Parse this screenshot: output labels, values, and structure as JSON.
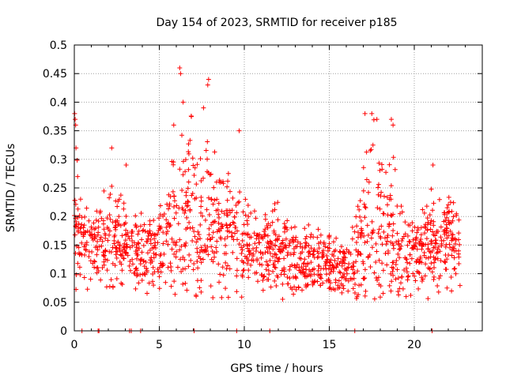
{
  "chart_data": {
    "type": "scatter",
    "title": "Day 154 of 2023, SRMTID for receiver p185",
    "xlabel": "GPS time / hours",
    "ylabel": "SRMTID / TECUs",
    "xlim": [
      0,
      24
    ],
    "ylim": [
      0,
      0.5
    ],
    "x_ticks": [
      0,
      5,
      10,
      15,
      20
    ],
    "x_tick_labels": [
      "0",
      "5",
      "10",
      "15",
      "20"
    ],
    "y_ticks": [
      0,
      0.05,
      0.1,
      0.15,
      0.2,
      0.25,
      0.3,
      0.35,
      0.4,
      0.45,
      0.5
    ],
    "y_tick_labels": [
      "0",
      "0.05",
      "0.1",
      "0.15",
      "0.2",
      "0.25",
      "0.3",
      "0.35",
      "0.4",
      "0.45",
      "0.5"
    ],
    "grid": true,
    "marker": "+",
    "marker_color": "#ff0000",
    "series": [
      {
        "name": "SRMTID",
        "trend": {
          "x": [
            0,
            0.5,
            1,
            2,
            3,
            3.5,
            4,
            5,
            5.5,
            6,
            6.5,
            7,
            7.5,
            8,
            9,
            10,
            11,
            12,
            13,
            14,
            15,
            15.5,
            16,
            16.5,
            17,
            17.5,
            18,
            18.5,
            19,
            19.5,
            20,
            21,
            22,
            22.7
          ],
          "center": [
            0.2,
            0.16,
            0.14,
            0.16,
            0.16,
            0.13,
            0.14,
            0.14,
            0.16,
            0.18,
            0.2,
            0.21,
            0.17,
            0.18,
            0.17,
            0.15,
            0.14,
            0.14,
            0.12,
            0.12,
            0.12,
            0.11,
            0.11,
            0.13,
            0.16,
            0.19,
            0.19,
            0.18,
            0.15,
            0.13,
            0.14,
            0.15,
            0.16,
            0.15
          ],
          "spread": [
            0.1,
            0.05,
            0.05,
            0.07,
            0.05,
            0.05,
            0.05,
            0.05,
            0.07,
            0.1,
            0.12,
            0.11,
            0.1,
            0.1,
            0.08,
            0.06,
            0.05,
            0.05,
            0.04,
            0.04,
            0.04,
            0.04,
            0.04,
            0.05,
            0.09,
            0.12,
            0.12,
            0.1,
            0.08,
            0.05,
            0.05,
            0.06,
            0.06,
            0.05
          ],
          "points": 1500,
          "x_end": 22.7
        },
        "extra_points": [
          {
            "x": 0.02,
            "y": 0.38
          },
          {
            "x": 0.05,
            "y": 0.37
          },
          {
            "x": 0.08,
            "y": 0.36
          },
          {
            "x": 0.1,
            "y": 0.32
          },
          {
            "x": 6.2,
            "y": 0.46
          },
          {
            "x": 6.25,
            "y": 0.45
          },
          {
            "x": 7.9,
            "y": 0.44
          },
          {
            "x": 7.85,
            "y": 0.43
          },
          {
            "x": 7.6,
            "y": 0.39
          },
          {
            "x": 6.4,
            "y": 0.4
          },
          {
            "x": 5.85,
            "y": 0.36
          },
          {
            "x": 17.1,
            "y": 0.38
          },
          {
            "x": 17.5,
            "y": 0.38
          },
          {
            "x": 17.8,
            "y": 0.37
          },
          {
            "x": 18.65,
            "y": 0.37
          },
          {
            "x": 18.75,
            "y": 0.36
          },
          {
            "x": 9.7,
            "y": 0.35
          },
          {
            "x": 2.2,
            "y": 0.32
          },
          {
            "x": 21.1,
            "y": 0.29
          },
          {
            "x": 3.05,
            "y": 0.29
          }
        ],
        "zero_points": [
          0.45,
          1.4,
          1.45,
          3.25,
          3.35,
          3.9,
          7.05,
          9.55,
          11.5,
          16.5,
          21.05
        ]
      }
    ]
  }
}
